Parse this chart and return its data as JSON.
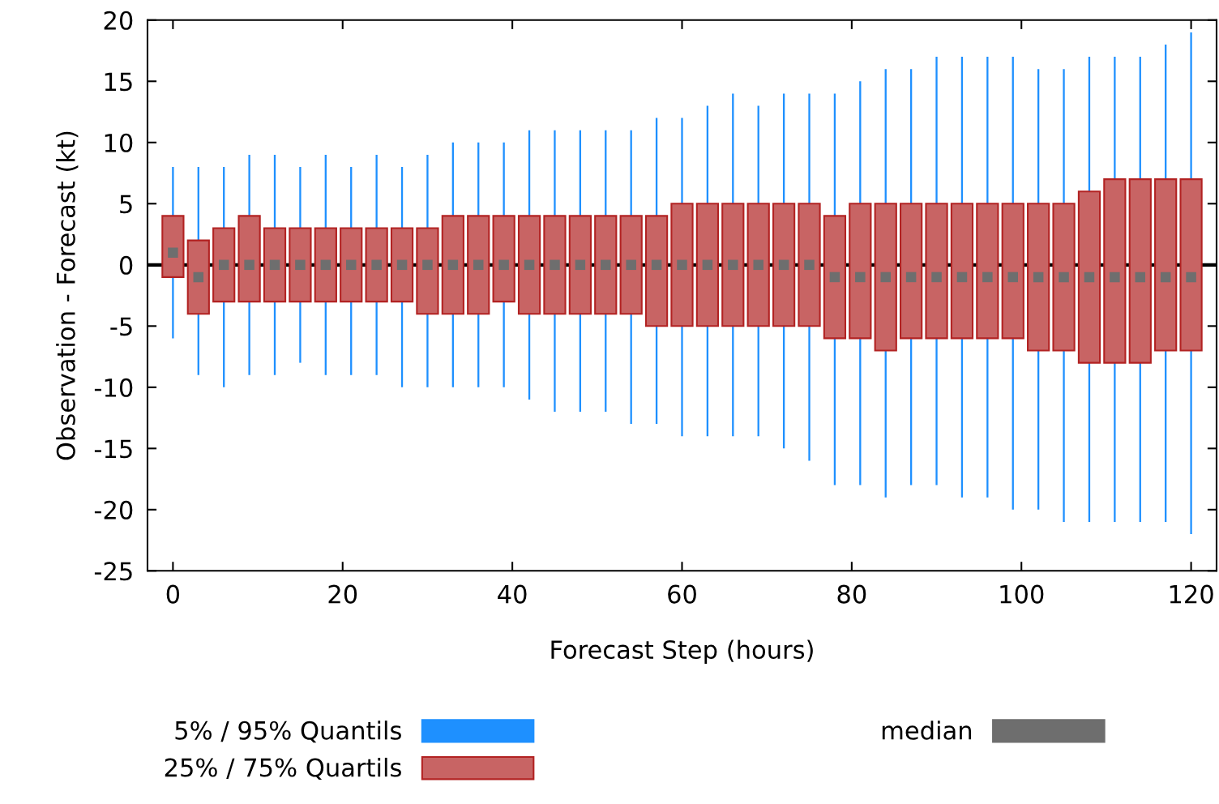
{
  "chart_data": {
    "type": "bar",
    "xlabel": "Forecast Step (hours)",
    "ylabel": "Observation - Forecast (kt)",
    "x": [
      0,
      3,
      6,
      9,
      12,
      15,
      18,
      21,
      24,
      27,
      30,
      33,
      36,
      39,
      42,
      45,
      48,
      51,
      54,
      57,
      60,
      63,
      66,
      69,
      72,
      75,
      78,
      81,
      84,
      87,
      90,
      93,
      96,
      99,
      102,
      105,
      108,
      111,
      114,
      117,
      120
    ],
    "series": [
      {
        "name": "5% / 95% Quantils",
        "color": "#1e90ff",
        "base": [
          -6,
          -9,
          -10,
          -9,
          -9,
          -8,
          -9,
          -9,
          -9,
          -10,
          -10,
          -10,
          -10,
          -10,
          -11,
          -12,
          -12,
          -12,
          -13,
          -13,
          -14,
          -14,
          -14,
          -14,
          -15,
          -16,
          -18,
          -18,
          -19,
          -18,
          -18,
          -19,
          -19,
          -20,
          -20,
          -21,
          -21,
          -21,
          -21,
          -21,
          -22
        ],
        "values": [
          14,
          17,
          18,
          18,
          18,
          16,
          18,
          17,
          18,
          18,
          19,
          20,
          20,
          20,
          22,
          23,
          23,
          23,
          24,
          25,
          26,
          27,
          28,
          27,
          29,
          30,
          32,
          33,
          35,
          34,
          35,
          36,
          36,
          37,
          36,
          37,
          38,
          38,
          38,
          39,
          41
        ]
      },
      {
        "name": "25% / 75% Quartils",
        "color": "#c86464",
        "base": [
          -1,
          -4,
          -3,
          -3,
          -3,
          -3,
          -3,
          -3,
          -3,
          -3,
          -4,
          -4,
          -4,
          -3,
          -4,
          -4,
          -4,
          -4,
          -4,
          -5,
          -5,
          -5,
          -5,
          -5,
          -5,
          -5,
          -6,
          -6,
          -7,
          -6,
          -6,
          -6,
          -6,
          -6,
          -7,
          -7,
          -8,
          -8,
          -8,
          -7,
          -7
        ],
        "values": [
          5,
          6,
          6,
          7,
          6,
          6,
          6,
          6,
          6,
          6,
          7,
          8,
          8,
          7,
          8,
          8,
          8,
          8,
          8,
          9,
          10,
          10,
          10,
          10,
          10,
          10,
          10,
          11,
          12,
          11,
          11,
          11,
          11,
          11,
          12,
          12,
          14,
          15,
          15,
          14,
          14
        ]
      },
      {
        "name": "median",
        "color": "#6e6e6e",
        "type": "scatter",
        "marker": "square",
        "values": [
          1,
          -1,
          0,
          0,
          0,
          0,
          0,
          0,
          0,
          0,
          0,
          0,
          0,
          0,
          0,
          0,
          0,
          0,
          0,
          0,
          0,
          0,
          0,
          0,
          0,
          0,
          -1,
          -1,
          -1,
          -1,
          -1,
          -1,
          -1,
          -1,
          -1,
          -1,
          -1,
          -1,
          -1,
          -1,
          -1
        ]
      }
    ],
    "xlim": [
      -3,
      123
    ],
    "xticks": [
      0,
      20,
      40,
      60,
      80,
      100,
      120
    ],
    "ylim": [
      -25,
      20
    ],
    "yticks": [
      -25,
      -20,
      -15,
      -10,
      -5,
      0,
      5,
      10,
      15,
      20
    ],
    "ref_lines": [
      {
        "axis": "y",
        "value": 0,
        "color": "#000000"
      }
    ],
    "grid": false,
    "legend": "bottom"
  }
}
